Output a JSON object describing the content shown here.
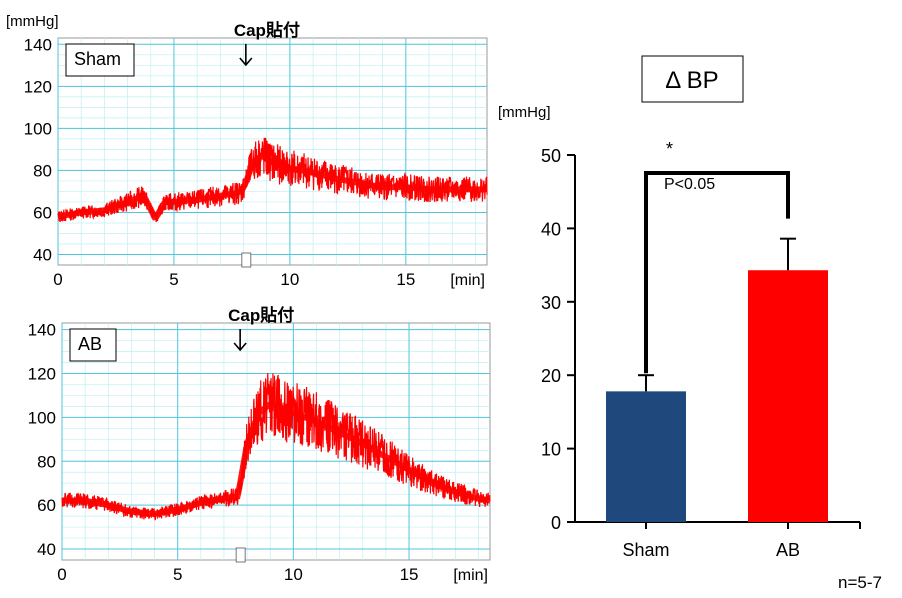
{
  "charts": [
    {
      "type": "line",
      "label": "Sham",
      "ylabel": "[mmHg]",
      "xlabel": "[min]",
      "xlim": [
        0,
        18.5
      ],
      "ylim": [
        35,
        143
      ],
      "yticks": [
        40,
        60,
        80,
        100,
        120,
        140
      ],
      "xticks": [
        0,
        5,
        10,
        15
      ],
      "annotation": {
        "text": "Cap貼付",
        "x": 8.1
      },
      "color": "#ff0000",
      "x": [
        0,
        1,
        2,
        3,
        3.7,
        4.2,
        4.6,
        5,
        6,
        7,
        7.6,
        7.9,
        8.1,
        8.4,
        8.8,
        9.2,
        10,
        11,
        12,
        13,
        14,
        15,
        16,
        17,
        18.5
      ],
      "y": [
        58,
        60,
        61,
        65,
        68,
        57,
        65,
        65,
        66,
        68,
        69,
        70,
        74,
        84,
        87,
        84,
        81,
        79,
        76,
        74,
        72,
        72,
        71,
        71,
        71
      ]
    },
    {
      "type": "line",
      "label": "AB",
      "xlabel": "[min]",
      "xlim": [
        0,
        18.5
      ],
      "ylim": [
        35,
        143
      ],
      "yticks": [
        40,
        60,
        80,
        100,
        120,
        140
      ],
      "xticks": [
        0,
        5,
        10,
        15
      ],
      "annotation": {
        "text": "Cap貼付",
        "x": 7.7
      },
      "color": "#ff0000",
      "x": [
        0,
        1,
        2,
        3,
        4,
        5,
        6,
        7,
        7.6,
        8,
        8.5,
        9,
        10,
        11,
        12,
        13,
        14,
        15,
        16,
        17,
        18,
        18.5
      ],
      "y": [
        62,
        62,
        60,
        57,
        56,
        58,
        61,
        63,
        64,
        88,
        102,
        106,
        102,
        98,
        93,
        88,
        82,
        76,
        70,
        66,
        63,
        62
      ]
    },
    {
      "type": "bar",
      "title": "Δ BP",
      "ylabel": "[mmHg]",
      "categories": [
        "Sham",
        "AB"
      ],
      "values": [
        17.8,
        34.3
      ],
      "errors": [
        2.2,
        4.3
      ],
      "colors": [
        "#1f497d",
        "#ff0000"
      ],
      "ylim": [
        0,
        50
      ],
      "yticks": [
        0,
        10,
        20,
        30,
        40,
        50
      ],
      "significance": {
        "star": "*",
        "text": "P<0.05"
      },
      "note": "n=5-7"
    }
  ]
}
